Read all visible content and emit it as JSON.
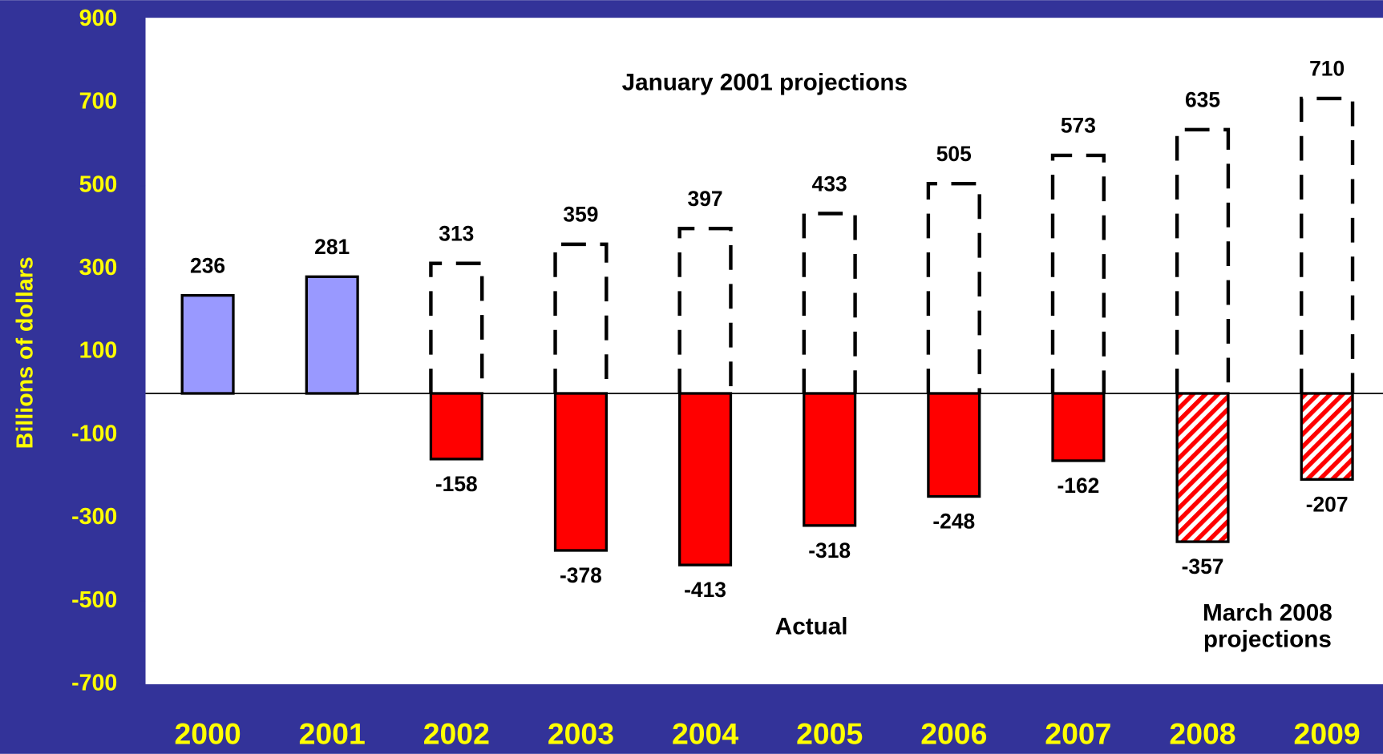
{
  "chart_data": {
    "type": "bar",
    "y_label": "Billions of dollars",
    "categories": [
      "2000",
      "2001",
      "2002",
      "2003",
      "2004",
      "2005",
      "2006",
      "2007",
      "2008",
      "2009"
    ],
    "series": [
      {
        "name": "January 2001 projections",
        "color": "#000000",
        "style": "dashed",
        "values": [
          null,
          null,
          313,
          359,
          397,
          433,
          505,
          573,
          635,
          710
        ]
      },
      {
        "name": "Actual",
        "style": "solid",
        "colors": [
          "#9999ff",
          "#9999ff",
          "#ff0000",
          "#ff0000",
          "#ff0000",
          "#ff0000",
          "#ff0000",
          "#ff0000",
          null,
          null
        ],
        "values": [
          236,
          281,
          -158,
          -378,
          -413,
          -318,
          -248,
          -162,
          null,
          null
        ]
      },
      {
        "name": "March 2008 projections",
        "color": "#ff0000",
        "style": "hatched",
        "values": [
          null,
          null,
          null,
          null,
          null,
          null,
          null,
          null,
          -357,
          -207
        ]
      }
    ],
    "ylim": [
      -700,
      900
    ],
    "yticks": [
      -700,
      -500,
      -300,
      -100,
      100,
      300,
      500,
      700,
      900
    ],
    "background": "#333399",
    "tick_color": "#ffff00"
  }
}
